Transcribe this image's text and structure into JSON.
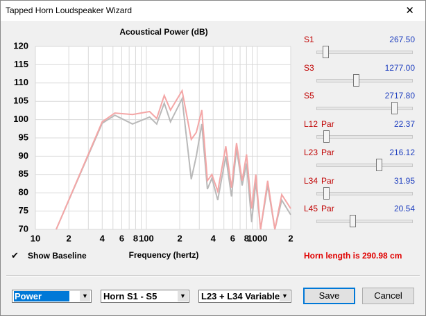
{
  "window": {
    "title": "Tapped Horn Loudspeaker Wizard"
  },
  "chart_data": {
    "type": "line",
    "title": "Acoustical Power (dB)",
    "x_label": "Frequency (hertz)",
    "x_scale": "log",
    "x": [
      15.4,
      40,
      52,
      75,
      107,
      124,
      145,
      165,
      210,
      254,
      282,
      316,
      355,
      390,
      440,
      520,
      585,
      650,
      730,
      800,
      890,
      970,
      1070,
      1240,
      1440,
      1660,
      2000
    ],
    "series": [
      {
        "color": "#b9b9b9",
        "values": [
          70,
          99,
          101.2,
          98.8,
          100.7,
          98.8,
          104.5,
          99.4,
          105.7,
          83.7,
          90,
          98.8,
          81,
          84,
          78,
          90,
          79,
          92,
          82,
          88,
          72,
          83,
          70,
          82,
          70,
          78,
          74
        ]
      },
      {
        "color": "#f4a6a6",
        "values": [
          70,
          99.4,
          101.8,
          101.4,
          102.2,
          100.3,
          106.6,
          102.6,
          107.9,
          94.6,
          96.5,
          102.6,
          83.3,
          85,
          80.4,
          92.7,
          81.4,
          93.6,
          83.3,
          90.5,
          75.7,
          85,
          70,
          83.3,
          70,
          79.5,
          75.7
        ]
      }
    ],
    "xlim": [
      10,
      2000
    ],
    "ylim": [
      70,
      120
    ],
    "yticks": [
      70,
      75,
      80,
      85,
      90,
      95,
      100,
      105,
      110,
      115,
      120
    ],
    "xticks": [
      10,
      {
        "value": 20,
        "label": "2"
      },
      {
        "value": 40,
        "label": "4"
      },
      {
        "value": 60,
        "label": "6"
      },
      {
        "value": 80,
        "label": "8"
      },
      100,
      {
        "value": 200,
        "label": "2"
      },
      {
        "value": 400,
        "label": "4"
      },
      {
        "value": 600,
        "label": "6"
      },
      {
        "value": 800,
        "label": "8"
      },
      1000,
      {
        "value": 2000,
        "label": "2"
      }
    ],
    "xgrid_minor": [
      30,
      50,
      70,
      90,
      300,
      500,
      700,
      900
    ],
    "grid": true
  },
  "show_baseline": {
    "label": "Show Baseline",
    "checked": true
  },
  "sliders": [
    {
      "name": "S1",
      "value": "267.50"
    },
    {
      "name": "S3",
      "value": "1277.00"
    },
    {
      "name": "S5",
      "value": "2717.80"
    },
    {
      "name": "L12",
      "mode": "Par",
      "value": "22.37"
    },
    {
      "name": "L23",
      "mode": "Par",
      "value": "216.12"
    },
    {
      "name": "L34",
      "mode": "Par",
      "value": "31.95"
    },
    {
      "name": "L45",
      "mode": "Par",
      "value": "20.54"
    }
  ],
  "horn_length": "Horn length is 290.98 cm",
  "dropdowns": [
    "Power",
    "Horn S1 - S5",
    "L23 + L34 Variable"
  ],
  "buttons": [
    "Save",
    "Cancel"
  ]
}
